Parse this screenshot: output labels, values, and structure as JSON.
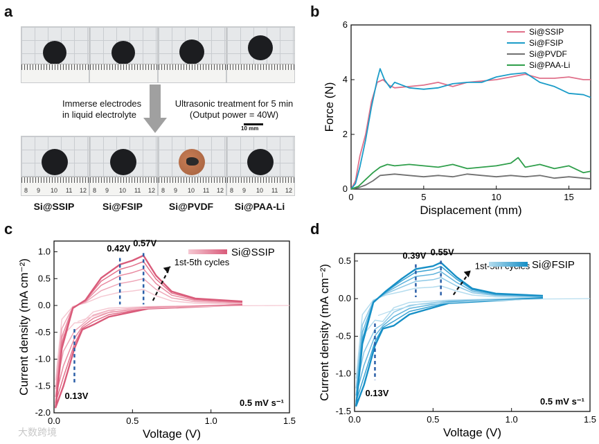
{
  "panel_a": {
    "letter": "a",
    "note_left": [
      "Immerse electrodes",
      "in liquid electrolyte"
    ],
    "note_right": [
      "Ultrasonic treatment for 5 min",
      "(Output power = 40W)"
    ],
    "scale_bar": "10 mm",
    "ruler_numbers": [
      "8",
      "9",
      "10",
      "11",
      "12"
    ],
    "captions": [
      "Si@SSIP",
      "Si@FSIP",
      "Si@PVDF",
      "Si@PAA-Li"
    ]
  },
  "chart_data": [
    {
      "panel": "b",
      "type": "line",
      "xlabel": "Displacement (mm)",
      "ylabel": "Force (N)",
      "xlim": [
        0,
        16.5
      ],
      "ylim": [
        0,
        6
      ],
      "xticks": [
        0,
        5,
        10,
        15
      ],
      "yticks": [
        0,
        2,
        4,
        6
      ],
      "legend_placement": "top-right",
      "series": [
        {
          "name": "Si@SSIP",
          "color": "#e0708a",
          "x": [
            0,
            0.3,
            0.6,
            1.0,
            1.4,
            1.8,
            2.2,
            2.6,
            3.0,
            4,
            5,
            6,
            7,
            8,
            9,
            10,
            11,
            12,
            13,
            14,
            15,
            16,
            16.5
          ],
          "y": [
            0,
            0.3,
            1.2,
            2.0,
            3.2,
            3.9,
            4.0,
            3.8,
            3.7,
            3.75,
            3.8,
            3.9,
            3.75,
            3.9,
            3.95,
            4.0,
            4.1,
            4.2,
            4.05,
            4.05,
            4.1,
            4.0,
            4.0
          ]
        },
        {
          "name": "Si@FSIP",
          "color": "#1a9cc8",
          "x": [
            0,
            0.3,
            0.6,
            1.0,
            1.4,
            1.8,
            2.0,
            2.3,
            2.7,
            3.0,
            4,
            5,
            6,
            7,
            8,
            9,
            10,
            11,
            12,
            13,
            14,
            15,
            16,
            16.5
          ],
          "y": [
            0,
            0.2,
            0.8,
            1.8,
            3.0,
            4.0,
            4.4,
            4.0,
            3.7,
            3.9,
            3.7,
            3.65,
            3.7,
            3.85,
            3.9,
            3.9,
            4.1,
            4.2,
            4.25,
            3.9,
            3.75,
            3.5,
            3.45,
            3.35
          ]
        },
        {
          "name": "Si@PVDF",
          "color": "#707070",
          "x": [
            0,
            0.5,
            1,
            1.5,
            2,
            3,
            4,
            5,
            6,
            7,
            8,
            9,
            10,
            11,
            12,
            13,
            14,
            15,
            16,
            16.5
          ],
          "y": [
            0,
            0.05,
            0.15,
            0.3,
            0.5,
            0.55,
            0.5,
            0.45,
            0.5,
            0.45,
            0.55,
            0.5,
            0.45,
            0.5,
            0.45,
            0.5,
            0.4,
            0.45,
            0.4,
            0.38
          ]
        },
        {
          "name": "Si@PAA-Li",
          "color": "#2e9e4a",
          "x": [
            0,
            0.5,
            1,
            1.5,
            2,
            2.5,
            3,
            4,
            5,
            6,
            7,
            8,
            9,
            10,
            11,
            11.5,
            12,
            13,
            14,
            15,
            16,
            16.5
          ],
          "y": [
            0,
            0.1,
            0.35,
            0.6,
            0.8,
            0.9,
            0.85,
            0.9,
            0.85,
            0.8,
            0.9,
            0.75,
            0.8,
            0.85,
            0.95,
            1.15,
            0.8,
            0.9,
            0.75,
            0.85,
            0.6,
            0.65
          ]
        }
      ]
    },
    {
      "panel": "c",
      "type": "line",
      "xlabel": "Voltage (V)",
      "ylabel": "Current density (mA cm⁻²)",
      "xlim": [
        0,
        1.5
      ],
      "ylim": [
        -2.0,
        1.2
      ],
      "xticks": [
        0.0,
        0.5,
        1.0,
        1.5
      ],
      "yticks": [
        -2.0,
        -1.5,
        -1.0,
        -0.5,
        0.0,
        0.5,
        1.0
      ],
      "legend": "Si@SSIP",
      "legend_placement": "top-right",
      "annotations": {
        "peak1": "0.42V",
        "peak2": "0.57V",
        "valley": "0.13V",
        "cycles": "1st-5th cycles",
        "rate": "0.5 mV s⁻¹"
      },
      "peak_voltages": [
        0.42,
        0.57
      ],
      "valley_voltage": 0.13,
      "anodic_peak_heights": [
        0.3,
        0.5,
        0.68,
        0.82,
        0.93
      ],
      "color_base": "#e0708a"
    },
    {
      "panel": "d",
      "type": "line",
      "xlabel": "Voltage (V)",
      "ylabel": "Current density (mA cm⁻²)",
      "xlim": [
        0,
        1.5
      ],
      "ylim": [
        -1.5,
        0.6
      ],
      "xticks": [
        0.0,
        0.5,
        1.0,
        1.5
      ],
      "yticks": [
        -1.5,
        -1.0,
        -0.5,
        0.0,
        0.5
      ],
      "legend": "Si@FSIP",
      "legend_placement": "top-right",
      "annotations": {
        "peak1": "0.39V",
        "peak2": "0.55V",
        "valley": "0.13V",
        "cycles": "1st-5th cycles",
        "rate": "0.5 mV s⁻¹"
      },
      "peak_voltages": [
        0.39,
        0.55
      ],
      "valley_voltage": 0.13,
      "anodic_peak_heights": [
        0.17,
        0.28,
        0.36,
        0.43,
        0.48
      ],
      "color_base": "#1a9cc8"
    }
  ],
  "watermark": "大数跨境"
}
